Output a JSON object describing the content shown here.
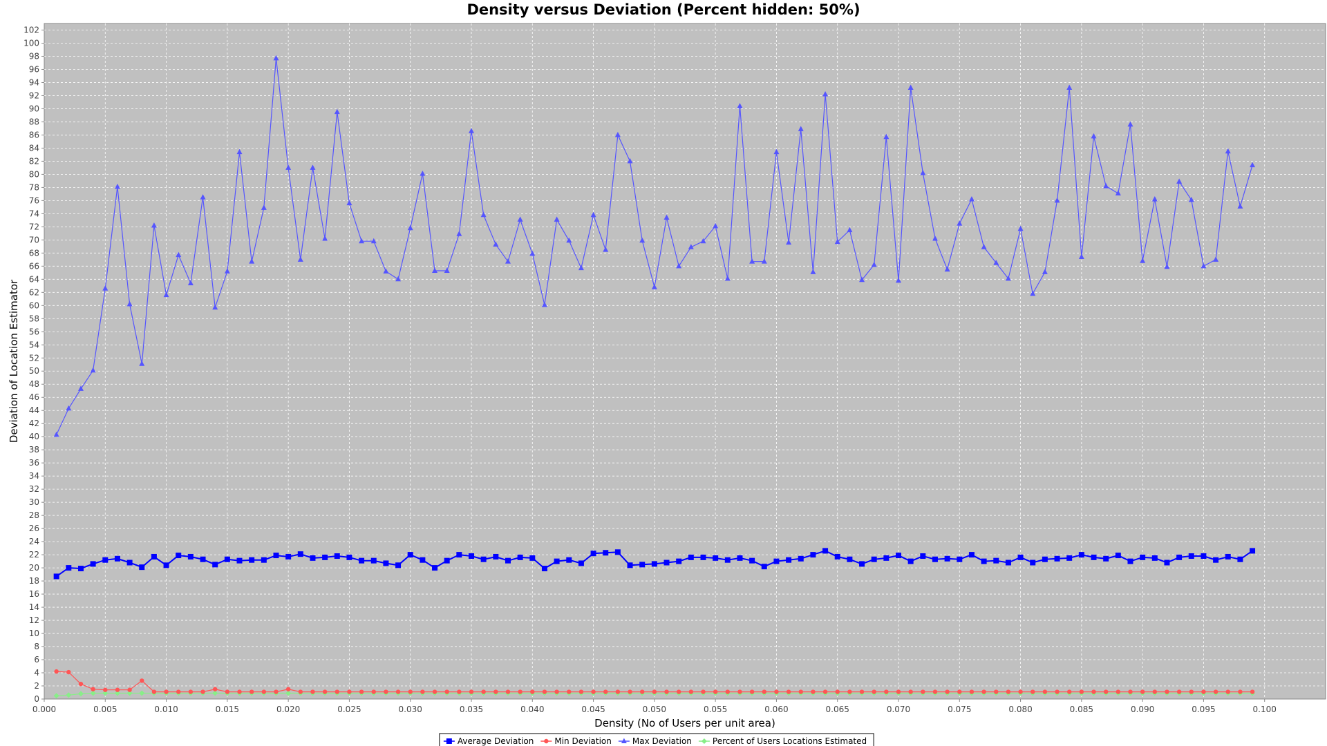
{
  "chart_data": {
    "type": "line",
    "title": "Density versus Deviation (Percent hidden: 50%)",
    "xlabel": "Density (No of Users per unit area)",
    "ylabel": "Deviation of Location Estimator",
    "xlim": [
      0.0,
      0.105
    ],
    "ylim": [
      0,
      103
    ],
    "x_tick_step": 0.005,
    "y_tick_step": 2,
    "grid": true,
    "background": "#c0c0c0",
    "legend_position": "bottom",
    "x": [
      0.001,
      0.002,
      0.003,
      0.004,
      0.005,
      0.006,
      0.007,
      0.008,
      0.009,
      0.01,
      0.011,
      0.012,
      0.013,
      0.014,
      0.015,
      0.016,
      0.017,
      0.018,
      0.019,
      0.02,
      0.021,
      0.022,
      0.023,
      0.024,
      0.025,
      0.026,
      0.027,
      0.028,
      0.029,
      0.03,
      0.031,
      0.032,
      0.033,
      0.034,
      0.035,
      0.036,
      0.037,
      0.038,
      0.039,
      0.04,
      0.041,
      0.042,
      0.043,
      0.044,
      0.045,
      0.046,
      0.047,
      0.048,
      0.049,
      0.05,
      0.051,
      0.052,
      0.053,
      0.054,
      0.055,
      0.056,
      0.057,
      0.058,
      0.059,
      0.06,
      0.061,
      0.062,
      0.063,
      0.064,
      0.065,
      0.066,
      0.067,
      0.068,
      0.069,
      0.07,
      0.071,
      0.072,
      0.073,
      0.074,
      0.075,
      0.076,
      0.077,
      0.078,
      0.079,
      0.08,
      0.081,
      0.082,
      0.083,
      0.084,
      0.085,
      0.086,
      0.087,
      0.088,
      0.089,
      0.09,
      0.091,
      0.092,
      0.093,
      0.094,
      0.095,
      0.096,
      0.097,
      0.098,
      0.099
    ],
    "series": [
      {
        "name": "Average Deviation",
        "color": "#0000ff",
        "marker": "square",
        "values": [
          18.7,
          20.0,
          19.9,
          20.6,
          21.2,
          21.4,
          20.8,
          20.1,
          21.7,
          20.4,
          21.9,
          21.7,
          21.3,
          20.5,
          21.3,
          21.1,
          21.2,
          21.2,
          21.9,
          21.7,
          22.1,
          21.5,
          21.6,
          21.8,
          21.6,
          21.1,
          21.1,
          20.7,
          20.4,
          22.0,
          21.2,
          20.0,
          21.1,
          22.0,
          21.8,
          21.3,
          21.7,
          21.1,
          21.6,
          21.5,
          19.9,
          21.0,
          21.2,
          20.7,
          22.2,
          22.3,
          22.4,
          20.4,
          20.5,
          20.6,
          20.8,
          21.0,
          21.6,
          21.6,
          21.5,
          21.2,
          21.5,
          21.1,
          20.2,
          21.0,
          21.2,
          21.4,
          22.0,
          22.6,
          21.7,
          21.3,
          20.6,
          21.3,
          21.5,
          21.9,
          21.0,
          21.8,
          21.3,
          21.4,
          21.3,
          22.0,
          21.0,
          21.1,
          20.8,
          21.6,
          20.8,
          21.3,
          21.4,
          21.5,
          22.0,
          21.6,
          21.4,
          21.9,
          21.0,
          21.6,
          21.5,
          20.8,
          21.6,
          21.8,
          21.8,
          21.2,
          21.7,
          21.3,
          22.6
        ]
      },
      {
        "name": "Min Deviation",
        "color": "#ff5555",
        "marker": "circle",
        "values": [
          4.2,
          4.1,
          2.3,
          1.5,
          1.4,
          1.4,
          1.4,
          2.8,
          1.1,
          1.1,
          1.1,
          1.1,
          1.1,
          1.5,
          1.1,
          1.1,
          1.1,
          1.1,
          1.1,
          1.5,
          1.1,
          1.1,
          1.1,
          1.1,
          1.1,
          1.1,
          1.1,
          1.1,
          1.1,
          1.1,
          1.1,
          1.1,
          1.1,
          1.1,
          1.1,
          1.1,
          1.1,
          1.1,
          1.1,
          1.1,
          1.1,
          1.1,
          1.1,
          1.1,
          1.1,
          1.1,
          1.1,
          1.1,
          1.1,
          1.1,
          1.1,
          1.1,
          1.1,
          1.1,
          1.1,
          1.1,
          1.1,
          1.1,
          1.1,
          1.1,
          1.1,
          1.1,
          1.1,
          1.1,
          1.1,
          1.1,
          1.1,
          1.1,
          1.1,
          1.1,
          1.1,
          1.1,
          1.1,
          1.1,
          1.1,
          1.1,
          1.1,
          1.1,
          1.1,
          1.1,
          1.1,
          1.1,
          1.1,
          1.1,
          1.1,
          1.1,
          1.1,
          1.1,
          1.1,
          1.1,
          1.1,
          1.1,
          1.1,
          1.1,
          1.1,
          1.1,
          1.1,
          1.1,
          1.1
        ]
      },
      {
        "name": "Max Deviation",
        "color": "#5555ff",
        "marker": "triangle",
        "values": [
          40.3,
          44.3,
          47.3,
          50.1,
          62.6,
          78.1,
          60.2,
          51.1,
          72.2,
          61.6,
          67.7,
          63.4,
          76.5,
          59.7,
          65.2,
          83.4,
          66.7,
          74.9,
          97.7,
          81.0,
          67.0,
          81.0,
          70.2,
          89.5,
          75.6,
          69.8,
          69.8,
          65.2,
          64.0,
          71.8,
          80.1,
          65.3,
          65.3,
          70.9,
          86.6,
          73.8,
          69.3,
          66.7,
          73.1,
          67.9,
          60.1,
          73.1,
          69.9,
          65.7,
          73.8,
          68.5,
          86.0,
          82.0,
          69.9,
          62.8,
          73.4,
          66.0,
          68.9,
          69.8,
          72.1,
          64.1,
          90.4,
          66.7,
          66.7,
          83.4,
          69.6,
          86.9,
          65.1,
          92.2,
          69.7,
          71.5,
          63.9,
          66.2,
          85.7,
          63.8,
          93.2,
          80.2,
          70.2,
          65.5,
          72.5,
          76.2,
          68.9,
          66.5,
          64.1,
          71.7,
          61.8,
          65.1,
          76.0,
          93.2,
          67.4,
          85.8,
          78.2,
          77.1,
          87.6,
          66.8,
          76.2,
          65.9,
          78.9,
          76.1,
          66.0,
          67.0,
          83.5,
          75.1,
          81.4
        ]
      },
      {
        "name": "Percent of Users Locations Estimated",
        "color": "#88ee88",
        "marker": "diamond",
        "values": [
          0.5,
          0.6,
          0.8,
          0.9,
          0.9,
          0.9,
          0.9,
          0.9,
          0.9,
          0.9,
          0.9,
          0.9,
          0.9,
          0.9,
          0.9,
          0.9,
          0.9,
          0.9,
          0.9,
          0.9,
          0.9,
          0.9,
          0.9,
          0.9,
          0.9,
          0.9,
          0.9,
          0.9,
          0.9,
          0.9,
          0.9,
          0.9,
          0.9,
          0.9,
          0.9,
          0.9,
          0.9,
          0.9,
          0.9,
          0.9,
          0.9,
          0.9,
          0.9,
          0.9,
          0.9,
          0.9,
          0.9,
          0.9,
          0.9,
          0.9,
          0.9,
          0.9,
          0.9,
          0.9,
          0.9,
          0.9,
          0.9,
          0.9,
          0.9,
          0.9,
          0.9,
          0.9,
          0.9,
          0.9,
          0.9,
          0.9,
          0.9,
          0.9,
          0.9,
          0.9,
          0.9,
          0.9,
          0.9,
          0.9,
          0.9,
          0.9,
          0.9,
          0.9,
          0.9,
          0.9,
          0.9,
          0.9,
          0.9,
          0.9,
          0.9,
          0.9,
          0.9,
          0.9,
          0.9,
          0.9,
          0.9,
          0.9,
          0.9,
          0.9,
          0.9,
          0.9,
          0.9,
          0.9,
          0.9
        ]
      }
    ]
  }
}
